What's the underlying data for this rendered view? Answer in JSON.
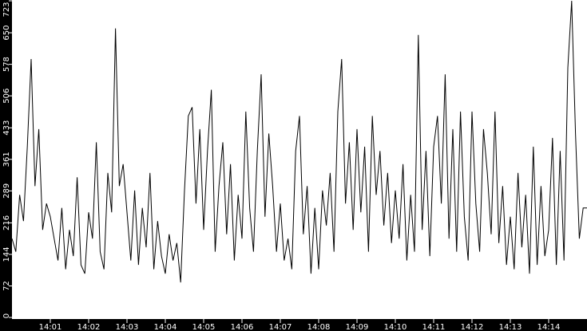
{
  "chart_data": {
    "type": "line",
    "title": "",
    "xlabel": "",
    "ylabel": "",
    "ylim": [
      0,
      723
    ],
    "xlim": [
      "14:00:00",
      "14:15:00"
    ],
    "grid": false,
    "legend": "none",
    "colors": {
      "background": "#000000",
      "plot_area": "#ffffff",
      "line": "#000000",
      "text": "#ffffff"
    },
    "y_ticks": [
      "0",
      "72",
      "144",
      "216",
      "289",
      "361",
      "433",
      "506",
      "578",
      "650",
      "723"
    ],
    "x_ticks": [
      "14:01",
      "14:02",
      "14:03",
      "14:04",
      "14:05",
      "14:06",
      "14:07",
      "14:08",
      "14:09",
      "14:10",
      "14:11",
      "14:12",
      "14:13",
      "14:14"
    ],
    "x_sample_interval_s": 6,
    "series": [
      {
        "values": [
          180,
          150,
          280,
          220,
          390,
          590,
          300,
          430,
          200,
          260,
          230,
          180,
          130,
          250,
          110,
          200,
          140,
          320,
          120,
          100,
          240,
          180,
          400,
          150,
          110,
          330,
          240,
          660,
          300,
          350,
          240,
          130,
          290,
          120,
          250,
          160,
          330,
          110,
          220,
          140,
          100,
          190,
          130,
          170,
          80,
          290,
          460,
          480,
          260,
          430,
          200,
          380,
          520,
          150,
          300,
          400,
          190,
          350,
          130,
          280,
          180,
          470,
          250,
          150,
          380,
          555,
          230,
          420,
          300,
          150,
          260,
          130,
          180,
          110,
          380,
          460,
          190,
          300,
          100,
          250,
          110,
          290,
          210,
          330,
          150,
          470,
          590,
          260,
          400,
          200,
          430,
          240,
          390,
          150,
          460,
          280,
          380,
          210,
          330,
          170,
          290,
          180,
          350,
          130,
          280,
          150,
          645,
          200,
          380,
          140,
          390,
          460,
          260,
          555,
          180,
          430,
          150,
          470,
          230,
          130,
          470,
          260,
          150,
          430,
          330,
          190,
          470,
          170,
          300,
          120,
          230,
          110,
          330,
          160,
          280,
          100,
          390,
          120,
          300,
          140,
          200,
          410,
          120,
          380,
          130,
          570,
          723,
          420,
          180,
          250
        ]
      }
    ]
  }
}
